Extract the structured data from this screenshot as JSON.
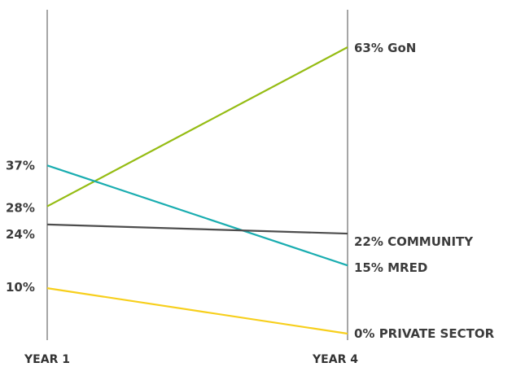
{
  "chart_data": {
    "type": "line",
    "categories": [
      "YEAR 1",
      "YEAR 4"
    ],
    "ylim": [
      0,
      63
    ],
    "series": [
      {
        "name": "GoN",
        "values": [
          28,
          63
        ],
        "start_label": "28%",
        "end_label": "63% GoN",
        "color": "#95bc13"
      },
      {
        "name": "MRED",
        "values": [
          37,
          15
        ],
        "start_label": "37%",
        "end_label": "15% MRED",
        "color": "#1aadb0"
      },
      {
        "name": "COMMUNITY",
        "values": [
          24,
          22
        ],
        "start_label": "24%",
        "end_label": "22% COMMUNITY",
        "color": "#4d4d4d"
      },
      {
        "name": "PRIVATE SECTOR",
        "values": [
          10,
          0
        ],
        "start_label": "10%",
        "end_label": "0% PRIVATE SECTOR",
        "color": "#f7cf1c"
      }
    ],
    "axis_color": "#a6a6a6"
  }
}
